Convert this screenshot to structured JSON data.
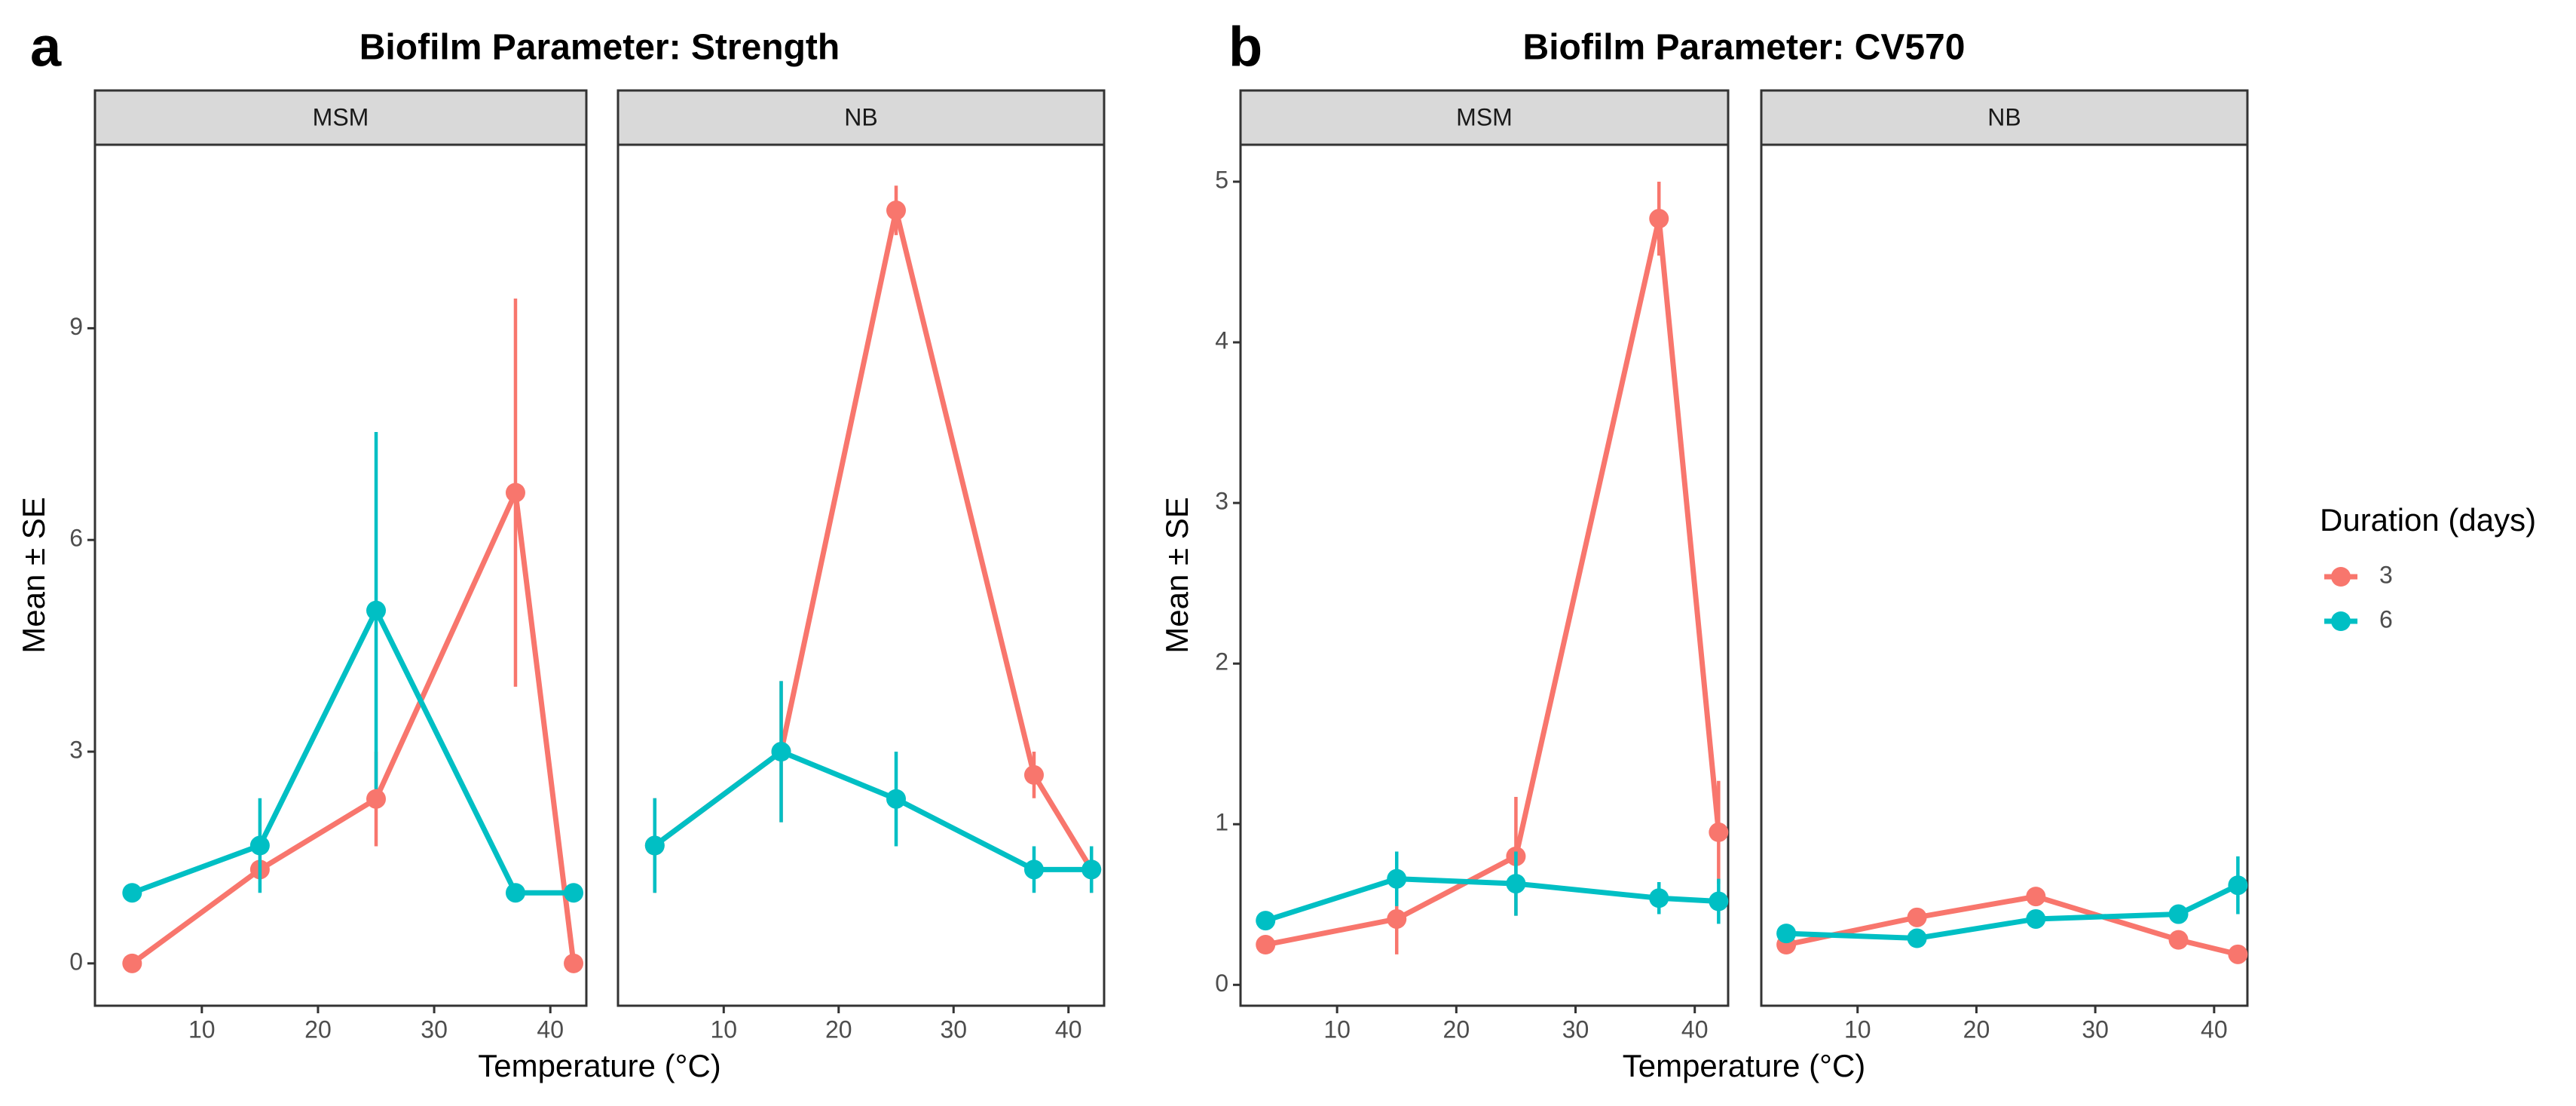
{
  "chart_data": [
    {
      "type": "line",
      "panel_label": "a",
      "title": "Biofilm Parameter: Strength",
      "xlabel": "Temperature (°C)",
      "ylabel": "Mean ± SE",
      "xlim": [
        0.8,
        43.1
      ],
      "xticks": [
        10,
        20,
        30,
        40
      ],
      "ylim": [
        -0.6,
        11.6
      ],
      "yticks": [
        0,
        3,
        6,
        9
      ],
      "facets": [
        {
          "name": "MSM",
          "series": [
            {
              "name": "3",
              "color": "#F8766D",
              "x": [
                4,
                15,
                25,
                37,
                42
              ],
              "values": [
                0,
                1.33,
                2.33,
                6.67,
                0
              ],
              "errors": [
                0.02,
                0.02,
                0.67,
                2.75,
                0.02
              ]
            },
            {
              "name": "6",
              "color": "#00BFC4",
              "x": [
                4,
                15,
                25,
                37,
                42
              ],
              "values": [
                1.0,
                1.67,
                5.0,
                1.0,
                1.0
              ],
              "errors": [
                0.02,
                0.67,
                2.53,
                0.02,
                0.02
              ]
            }
          ]
        },
        {
          "name": "NB",
          "series": [
            {
              "name": "3",
              "color": "#F8766D",
              "x": [
                4,
                15,
                25,
                37,
                42
              ],
              "values": [
                1.67,
                3.0,
                10.67,
                2.67,
                1.33
              ],
              "errors": [
                0.67,
                1.0,
                0.35,
                0.33,
                0.33
              ]
            },
            {
              "name": "6",
              "color": "#00BFC4",
              "x": [
                4,
                15,
                25,
                37,
                42
              ],
              "values": [
                1.67,
                3.0,
                2.33,
                1.33,
                1.33
              ],
              "errors": [
                0.67,
                1.0,
                0.67,
                0.33,
                0.33
              ]
            }
          ]
        }
      ]
    },
    {
      "type": "line",
      "panel_label": "b",
      "title": "Biofilm Parameter: CV570",
      "xlabel": "Temperature (°C)",
      "ylabel": "Mean ± SE",
      "xlim": [
        1.9,
        42.8
      ],
      "xticks": [
        10,
        20,
        30,
        40
      ],
      "ylim": [
        -0.13,
        5.23
      ],
      "yticks": [
        0,
        1,
        2,
        3,
        4,
        5
      ],
      "legend_title": "Duration (days)",
      "facets": [
        {
          "name": "MSM",
          "series": [
            {
              "name": "3",
              "color": "#F8766D",
              "x": [
                4,
                15,
                25,
                37,
                42
              ],
              "values": [
                0.25,
                0.41,
                0.8,
                4.77,
                0.95
              ],
              "errors": [
                0.02,
                0.22,
                0.37,
                0.23,
                0.32
              ]
            },
            {
              "name": "6",
              "color": "#00BFC4",
              "x": [
                4,
                15,
                25,
                37,
                42
              ],
              "values": [
                0.4,
                0.66,
                0.63,
                0.54,
                0.52
              ],
              "errors": [
                0.02,
                0.17,
                0.2,
                0.1,
                0.14
              ]
            }
          ]
        },
        {
          "name": "NB",
          "series": [
            {
              "name": "3",
              "color": "#F8766D",
              "x": [
                4,
                15,
                25,
                37,
                42
              ],
              "values": [
                0.25,
                0.42,
                0.55,
                0.28,
                0.19
              ],
              "errors": [
                0.02,
                0.02,
                0.02,
                0.02,
                0.02
              ]
            },
            {
              "name": "6",
              "color": "#00BFC4",
              "x": [
                4,
                15,
                25,
                37,
                42
              ],
              "values": [
                0.32,
                0.29,
                0.41,
                0.44,
                0.62
              ],
              "errors": [
                0.02,
                0.02,
                0.02,
                0.02,
                0.18
              ]
            }
          ]
        }
      ]
    }
  ]
}
